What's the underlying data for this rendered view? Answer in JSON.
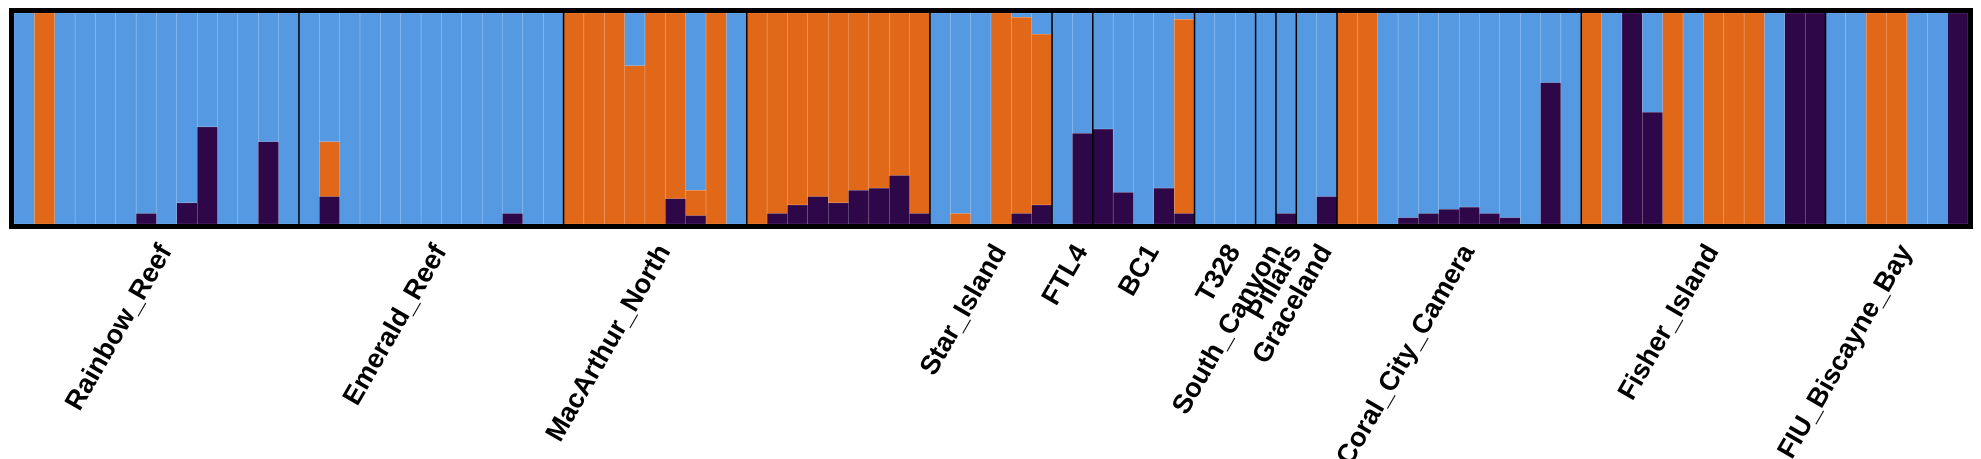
{
  "chart_data": {
    "type": "bar",
    "subtype": "stacked-proportion",
    "title": "",
    "xlabel": "",
    "ylabel": "",
    "ylim": [
      0,
      1
    ],
    "grid": false,
    "legend": "none",
    "series": [
      {
        "color": "#5599e3"
      },
      {
        "color": "#e06818"
      },
      {
        "color": "#2e0749"
      }
    ],
    "populations": [
      {
        "name": "Rainbow_Reef",
        "individuals": [
          [
            1,
            0,
            0
          ],
          [
            0,
            1,
            0
          ],
          [
            1,
            0,
            0
          ],
          [
            1,
            0,
            0
          ],
          [
            1,
            0,
            0
          ],
          [
            1,
            0,
            0
          ],
          [
            0.95,
            0,
            0.05
          ],
          [
            1,
            0,
            0
          ],
          [
            0.9,
            0,
            0.1
          ],
          [
            0.54,
            0,
            0.46
          ],
          [
            1,
            0,
            0
          ],
          [
            1,
            0,
            0
          ],
          [
            0.61,
            0,
            0.39
          ],
          [
            1,
            0,
            0
          ]
        ]
      },
      {
        "name": "Emerald_Reef",
        "individuals": [
          [
            1,
            0,
            0
          ],
          [
            0.61,
            0.26,
            0.13
          ],
          [
            1,
            0,
            0
          ],
          [
            1,
            0,
            0
          ],
          [
            1,
            0,
            0
          ],
          [
            1,
            0,
            0
          ],
          [
            1,
            0,
            0
          ],
          [
            1,
            0,
            0
          ],
          [
            1,
            0,
            0
          ],
          [
            1,
            0,
            0
          ],
          [
            0.95,
            0,
            0.05
          ],
          [
            1,
            0,
            0
          ],
          [
            1,
            0,
            0
          ]
        ]
      },
      {
        "name": "MacArthur_North",
        "individuals": [
          [
            0,
            1,
            0
          ],
          [
            0,
            1,
            0
          ],
          [
            0,
            1,
            0
          ],
          [
            0.25,
            0.75,
            0
          ],
          [
            0,
            1,
            0
          ],
          [
            0,
            0.88,
            0.12
          ],
          [
            0.84,
            0.12,
            0.04
          ],
          [
            0,
            1,
            0
          ],
          [
            1,
            0,
            0
          ]
        ]
      },
      {
        "name": "",
        "individuals": [
          [
            0,
            1,
            0
          ],
          [
            0,
            0.95,
            0.05
          ],
          [
            0,
            0.91,
            0.09
          ],
          [
            0,
            0.87,
            0.13
          ],
          [
            0,
            0.9,
            0.1
          ],
          [
            0,
            0.84,
            0.16
          ],
          [
            0,
            0.83,
            0.17
          ],
          [
            0,
            0.77,
            0.23
          ],
          [
            0,
            0.95,
            0.05
          ]
        ]
      },
      {
        "name": "Star_Island",
        "individuals": [
          [
            1,
            0,
            0
          ],
          [
            0.95,
            0.05,
            0
          ],
          [
            1,
            0,
            0
          ],
          [
            0,
            1,
            0
          ],
          [
            0.02,
            0.93,
            0.05
          ],
          [
            0.1,
            0.81,
            0.09
          ]
        ]
      },
      {
        "name": "FTL4",
        "individuals": [
          [
            1,
            0,
            0
          ],
          [
            0.57,
            0,
            0.43
          ]
        ]
      },
      {
        "name": "BC1",
        "individuals": [
          [
            0.55,
            0,
            0.45
          ],
          [
            0.85,
            0,
            0.15
          ],
          [
            1,
            0,
            0
          ],
          [
            0.83,
            0,
            0.17
          ],
          [
            0.03,
            0.92,
            0.05
          ]
        ]
      },
      {
        "name": "T328",
        "individuals": [
          [
            1,
            0,
            0
          ],
          [
            1,
            0,
            0
          ],
          [
            1,
            0,
            0
          ]
        ]
      },
      {
        "name": "South_Canyon",
        "individuals": [
          [
            1,
            0,
            0
          ]
        ]
      },
      {
        "name": "Pillars",
        "individuals": [
          [
            0.95,
            0,
            0.05
          ]
        ]
      },
      {
        "name": "Graceland",
        "individuals": [
          [
            1,
            0,
            0
          ],
          [
            0.87,
            0,
            0.13
          ]
        ]
      },
      {
        "name": "Coral_City_Camera",
        "individuals": [
          [
            0,
            1,
            0
          ],
          [
            0,
            1,
            0
          ],
          [
            1,
            0,
            0
          ],
          [
            0.97,
            0,
            0.03
          ],
          [
            0.95,
            0,
            0.05
          ],
          [
            0.93,
            0,
            0.07
          ],
          [
            0.92,
            0,
            0.08
          ],
          [
            0.95,
            0,
            0.05
          ],
          [
            0.97,
            0,
            0.03
          ],
          [
            1,
            0,
            0
          ],
          [
            0.33,
            0,
            0.67
          ],
          [
            1,
            0,
            0
          ]
        ]
      },
      {
        "name": "Fisher_Island",
        "individuals": [
          [
            0,
            1,
            0
          ],
          [
            1,
            0,
            0
          ],
          [
            0,
            0,
            1
          ],
          [
            0.47,
            0,
            0.53
          ],
          [
            0,
            1,
            0
          ],
          [
            1,
            0,
            0
          ],
          [
            0,
            1,
            0
          ],
          [
            0,
            1,
            0
          ],
          [
            0,
            1,
            0
          ],
          [
            1,
            0,
            0
          ],
          [
            0,
            0,
            1
          ],
          [
            0,
            0,
            1
          ]
        ]
      },
      {
        "name": "FIU_Biscayne_Bay",
        "individuals": [
          [
            1,
            0,
            0
          ],
          [
            1,
            0,
            0
          ],
          [
            0,
            1,
            0
          ],
          [
            0,
            1,
            0
          ],
          [
            1,
            0,
            0
          ],
          [
            1,
            0,
            0
          ],
          [
            0,
            0,
            1
          ]
        ]
      }
    ]
  }
}
